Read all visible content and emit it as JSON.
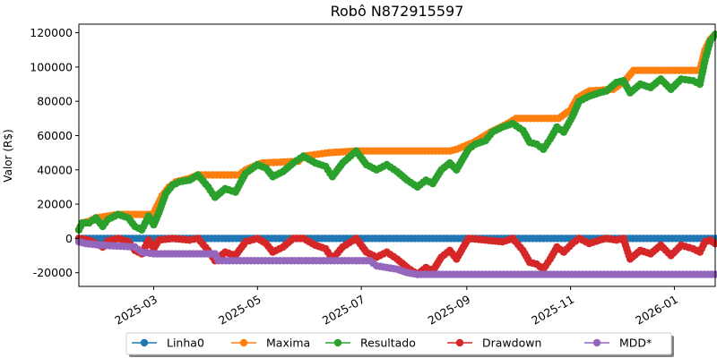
{
  "chart_data": {
    "type": "line",
    "title": "Robô N872915597",
    "xlabel": "",
    "ylabel": "Valor (R$)",
    "x_type": "date",
    "xlim": [
      "2025-01-16",
      "2026-01-25"
    ],
    "ylim": [
      -28000,
      125000
    ],
    "x_ticks": [
      "2025-03",
      "2025-05",
      "2025-07",
      "2025-09",
      "2025-11",
      "2026-01"
    ],
    "y_ticks": [
      -20000,
      0,
      20000,
      40000,
      60000,
      80000,
      100000,
      120000
    ],
    "grid": false,
    "legend_position": "bottom-center",
    "marker": "circle",
    "colors": {
      "Linha0": "#1f77b4",
      "Maxima": "#ff7f0e",
      "Resultado": "#2ca02c",
      "Drawdown": "#d62728",
      "MDD*": "#9467bd"
    },
    "series": [
      {
        "name": "Linha0",
        "color": "#1f77b4",
        "points": [
          [
            "2025-01-16",
            0
          ],
          [
            "2026-01-25",
            0
          ]
        ]
      },
      {
        "name": "Maxima",
        "color": "#ff7f0e",
        "points": [
          [
            "2025-01-16",
            5000
          ],
          [
            "2025-01-18",
            9000
          ],
          [
            "2025-01-22",
            10000
          ],
          [
            "2025-01-26",
            12000
          ],
          [
            "2025-02-02",
            13000
          ],
          [
            "2025-02-08",
            14000
          ],
          [
            "2025-03-01",
            14000
          ],
          [
            "2025-03-02",
            17000
          ],
          [
            "2025-03-06",
            25000
          ],
          [
            "2025-03-10",
            30000
          ],
          [
            "2025-03-14",
            33000
          ],
          [
            "2025-03-22",
            35000
          ],
          [
            "2025-03-27",
            37000
          ],
          [
            "2025-04-20",
            37000
          ],
          [
            "2025-04-24",
            40000
          ],
          [
            "2025-05-01",
            43000
          ],
          [
            "2025-05-04",
            44000
          ],
          [
            "2025-05-25",
            45000
          ],
          [
            "2025-05-28",
            48000
          ],
          [
            "2025-06-12",
            50000
          ],
          [
            "2025-06-28",
            51000
          ],
          [
            "2025-08-22",
            51000
          ],
          [
            "2025-08-26",
            52000
          ],
          [
            "2025-09-05",
            56000
          ],
          [
            "2025-09-15",
            62000
          ],
          [
            "2025-09-25",
            67000
          ],
          [
            "2025-09-30",
            70000
          ],
          [
            "2025-10-25",
            70000
          ],
          [
            "2025-11-01",
            75000
          ],
          [
            "2025-11-05",
            82000
          ],
          [
            "2025-11-12",
            86000
          ],
          [
            "2025-11-26",
            87000
          ],
          [
            "2025-12-03",
            92000
          ],
          [
            "2025-12-08",
            98000
          ],
          [
            "2026-01-16",
            98000
          ],
          [
            "2026-01-19",
            110000
          ],
          [
            "2026-01-22",
            116000
          ],
          [
            "2026-01-25",
            119000
          ]
        ]
      },
      {
        "name": "Resultado",
        "color": "#2ca02c",
        "points": [
          [
            "2025-01-16",
            5000
          ],
          [
            "2025-01-18",
            9000
          ],
          [
            "2025-01-22",
            9000
          ],
          [
            "2025-01-26",
            12000
          ],
          [
            "2025-01-30",
            7000
          ],
          [
            "2025-02-02",
            11000
          ],
          [
            "2025-02-08",
            14000
          ],
          [
            "2025-02-14",
            12000
          ],
          [
            "2025-02-18",
            7000
          ],
          [
            "2025-02-22",
            5000
          ],
          [
            "2025-02-26",
            13000
          ],
          [
            "2025-03-01",
            8000
          ],
          [
            "2025-03-04",
            15000
          ],
          [
            "2025-03-08",
            26000
          ],
          [
            "2025-03-12",
            31000
          ],
          [
            "2025-03-16",
            33000
          ],
          [
            "2025-03-22",
            34000
          ],
          [
            "2025-03-27",
            37000
          ],
          [
            "2025-04-02",
            30000
          ],
          [
            "2025-04-06",
            24000
          ],
          [
            "2025-04-12",
            29000
          ],
          [
            "2025-04-18",
            27000
          ],
          [
            "2025-04-24",
            38000
          ],
          [
            "2025-05-01",
            43000
          ],
          [
            "2025-05-06",
            41000
          ],
          [
            "2025-05-10",
            36000
          ],
          [
            "2025-05-16",
            39000
          ],
          [
            "2025-05-22",
            44000
          ],
          [
            "2025-05-28",
            48000
          ],
          [
            "2025-06-04",
            44000
          ],
          [
            "2025-06-10",
            42000
          ],
          [
            "2025-06-14",
            36000
          ],
          [
            "2025-06-20",
            44000
          ],
          [
            "2025-06-28",
            51000
          ],
          [
            "2025-07-04",
            43000
          ],
          [
            "2025-07-10",
            40000
          ],
          [
            "2025-07-16",
            43000
          ],
          [
            "2025-07-22",
            39000
          ],
          [
            "2025-07-28",
            34000
          ],
          [
            "2025-08-03",
            30000
          ],
          [
            "2025-08-08",
            34000
          ],
          [
            "2025-08-12",
            32000
          ],
          [
            "2025-08-17",
            40000
          ],
          [
            "2025-08-22",
            44000
          ],
          [
            "2025-08-26",
            40000
          ],
          [
            "2025-08-30",
            47000
          ],
          [
            "2025-09-02",
            52000
          ],
          [
            "2025-09-06",
            55000
          ],
          [
            "2025-09-12",
            57000
          ],
          [
            "2025-09-16",
            62000
          ],
          [
            "2025-09-22",
            65000
          ],
          [
            "2025-09-28",
            67000
          ],
          [
            "2025-10-04",
            63000
          ],
          [
            "2025-10-08",
            56000
          ],
          [
            "2025-10-12",
            55000
          ],
          [
            "2025-10-16",
            52000
          ],
          [
            "2025-10-20",
            58000
          ],
          [
            "2025-10-24",
            65000
          ],
          [
            "2025-10-28",
            62000
          ],
          [
            "2025-11-02",
            71000
          ],
          [
            "2025-11-06",
            80000
          ],
          [
            "2025-11-12",
            83000
          ],
          [
            "2025-11-18",
            85000
          ],
          [
            "2025-11-22",
            86000
          ],
          [
            "2025-11-28",
            91000
          ],
          [
            "2025-12-02",
            92000
          ],
          [
            "2025-12-06",
            85000
          ],
          [
            "2025-12-12",
            90000
          ],
          [
            "2025-12-18",
            88000
          ],
          [
            "2025-12-24",
            93000
          ],
          [
            "2025-12-30",
            87000
          ],
          [
            "2026-01-05",
            93000
          ],
          [
            "2026-01-12",
            92000
          ],
          [
            "2026-01-16",
            90000
          ],
          [
            "2026-01-19",
            104000
          ],
          [
            "2026-01-22",
            115000
          ],
          [
            "2026-01-25",
            119000
          ]
        ]
      },
      {
        "name": "Drawdown",
        "color": "#d62728",
        "points": [
          [
            "2025-01-16",
            0
          ],
          [
            "2025-01-22",
            -1000
          ],
          [
            "2025-01-30",
            -5000
          ],
          [
            "2025-02-02",
            -1500
          ],
          [
            "2025-02-08",
            0
          ],
          [
            "2025-02-14",
            -2000
          ],
          [
            "2025-02-18",
            -7000
          ],
          [
            "2025-02-22",
            -9000
          ],
          [
            "2025-02-26",
            -1000
          ],
          [
            "2025-03-01",
            -6000
          ],
          [
            "2025-03-04",
            -1000
          ],
          [
            "2025-03-12",
            0
          ],
          [
            "2025-03-22",
            -1000
          ],
          [
            "2025-03-27",
            0
          ],
          [
            "2025-04-02",
            -7000
          ],
          [
            "2025-04-06",
            -13000
          ],
          [
            "2025-04-12",
            -8000
          ],
          [
            "2025-04-18",
            -10000
          ],
          [
            "2025-04-24",
            -2000
          ],
          [
            "2025-05-01",
            0
          ],
          [
            "2025-05-06",
            -3000
          ],
          [
            "2025-05-10",
            -8000
          ],
          [
            "2025-05-16",
            -5000
          ],
          [
            "2025-05-22",
            0
          ],
          [
            "2025-05-28",
            0
          ],
          [
            "2025-06-04",
            -4000
          ],
          [
            "2025-06-10",
            -6000
          ],
          [
            "2025-06-14",
            -12000
          ],
          [
            "2025-06-20",
            -5000
          ],
          [
            "2025-06-28",
            0
          ],
          [
            "2025-07-04",
            -8000
          ],
          [
            "2025-07-10",
            -11000
          ],
          [
            "2025-07-16",
            -8000
          ],
          [
            "2025-07-22",
            -12000
          ],
          [
            "2025-07-28",
            -17000
          ],
          [
            "2025-08-03",
            -21000
          ],
          [
            "2025-08-08",
            -17000
          ],
          [
            "2025-08-12",
            -19000
          ],
          [
            "2025-08-17",
            -11000
          ],
          [
            "2025-08-22",
            -7000
          ],
          [
            "2025-08-26",
            -12000
          ],
          [
            "2025-08-30",
            -5000
          ],
          [
            "2025-09-02",
            0
          ],
          [
            "2025-09-12",
            -1000
          ],
          [
            "2025-09-22",
            -2000
          ],
          [
            "2025-09-28",
            0
          ],
          [
            "2025-10-04",
            -7000
          ],
          [
            "2025-10-08",
            -14000
          ],
          [
            "2025-10-12",
            -15000
          ],
          [
            "2025-10-16",
            -18000
          ],
          [
            "2025-10-20",
            -12000
          ],
          [
            "2025-10-24",
            -5000
          ],
          [
            "2025-10-28",
            -8000
          ],
          [
            "2025-11-02",
            -3000
          ],
          [
            "2025-11-06",
            0
          ],
          [
            "2025-11-12",
            -3000
          ],
          [
            "2025-11-18",
            -1000
          ],
          [
            "2025-11-22",
            0
          ],
          [
            "2025-11-28",
            -1000
          ],
          [
            "2025-12-02",
            0
          ],
          [
            "2025-12-06",
            -12000
          ],
          [
            "2025-12-12",
            -7000
          ],
          [
            "2025-12-18",
            -9000
          ],
          [
            "2025-12-24",
            -4000
          ],
          [
            "2025-12-30",
            -10000
          ],
          [
            "2026-01-05",
            -4000
          ],
          [
            "2026-01-12",
            -6000
          ],
          [
            "2026-01-16",
            -8000
          ],
          [
            "2026-01-19",
            -2000
          ],
          [
            "2026-01-22",
            -1000
          ],
          [
            "2026-01-25",
            -3000
          ]
        ]
      },
      {
        "name": "MDD*",
        "color": "#9467bd",
        "points": [
          [
            "2025-01-16",
            -2000
          ],
          [
            "2025-01-20",
            -3000
          ],
          [
            "2025-01-30",
            -4000
          ],
          [
            "2025-02-18",
            -5000
          ],
          [
            "2025-02-22",
            -8000
          ],
          [
            "2025-03-01",
            -9000
          ],
          [
            "2025-04-06",
            -9000
          ],
          [
            "2025-04-08",
            -13000
          ],
          [
            "2025-06-28",
            -13000
          ],
          [
            "2025-07-06",
            -13000
          ],
          [
            "2025-07-10",
            -16000
          ],
          [
            "2025-07-22",
            -18000
          ],
          [
            "2025-07-28",
            -20000
          ],
          [
            "2025-08-03",
            -21000
          ],
          [
            "2026-01-25",
            -21000
          ]
        ]
      }
    ]
  }
}
